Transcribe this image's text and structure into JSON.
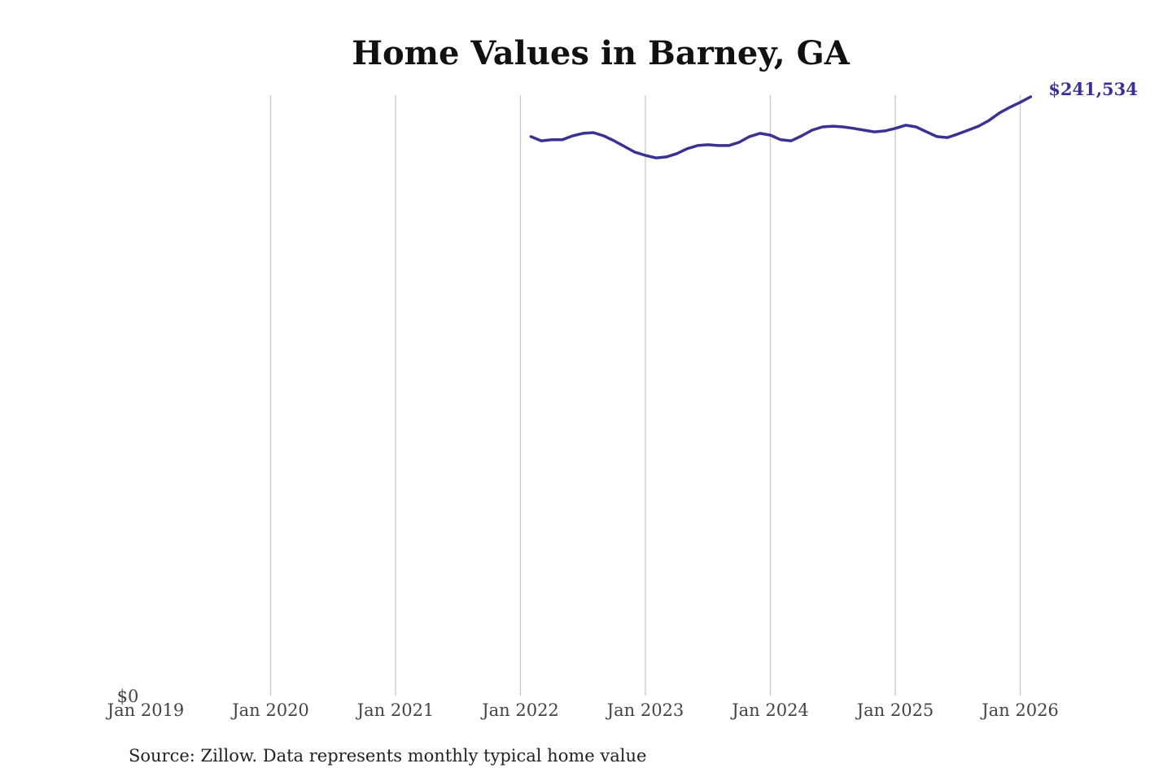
{
  "chart_data": {
    "type": "line",
    "title": "Home Values in Barney, GA",
    "xlabel": "",
    "ylabel": "",
    "x_ticks": [
      "Jan 2019",
      "Jan 2020",
      "Jan 2021",
      "Jan 2022",
      "Jan 2023",
      "Jan 2024",
      "Jan 2025",
      "Jan 2026"
    ],
    "y_ticks": [
      "$0"
    ],
    "xlim": [
      "2019-01",
      "2026-02"
    ],
    "ylim": [
      0,
      242200
    ],
    "grid": "vertical",
    "line_color": "#3a3293",
    "end_label": "$241,534",
    "series": [
      {
        "x": [
          "2022-02",
          "2022-03",
          "2022-04",
          "2022-05",
          "2022-06",
          "2022-07",
          "2022-08",
          "2022-09",
          "2022-10",
          "2022-11",
          "2022-12",
          "2023-01",
          "2023-02",
          "2023-03",
          "2023-04",
          "2023-05",
          "2023-06",
          "2023-07",
          "2023-08",
          "2023-09",
          "2023-10",
          "2023-11",
          "2023-12",
          "2024-01",
          "2024-02",
          "2024-03",
          "2024-04",
          "2024-05",
          "2024-06",
          "2024-07",
          "2024-08",
          "2024-09",
          "2024-10",
          "2024-11",
          "2024-12",
          "2025-01",
          "2025-02",
          "2025-03",
          "2025-04",
          "2025-05",
          "2025-06",
          "2025-07",
          "2025-08",
          "2025-09",
          "2025-10",
          "2025-11",
          "2025-12",
          "2026-01",
          "2026-02"
        ],
        "values": [
          225500,
          223800,
          224200,
          224200,
          225800,
          226800,
          227100,
          225800,
          223800,
          221500,
          219200,
          217900,
          216900,
          217300,
          218600,
          220600,
          221900,
          222200,
          221900,
          221900,
          223200,
          225500,
          226800,
          226100,
          224200,
          223800,
          225800,
          228100,
          229400,
          229700,
          229400,
          228800,
          228100,
          227400,
          227800,
          228800,
          230100,
          229400,
          227400,
          225500,
          225100,
          226500,
          228100,
          229700,
          232000,
          235000,
          237300,
          239300,
          241534
        ]
      }
    ]
  },
  "source": "Source: Zillow. Data represents monthly typical home value"
}
